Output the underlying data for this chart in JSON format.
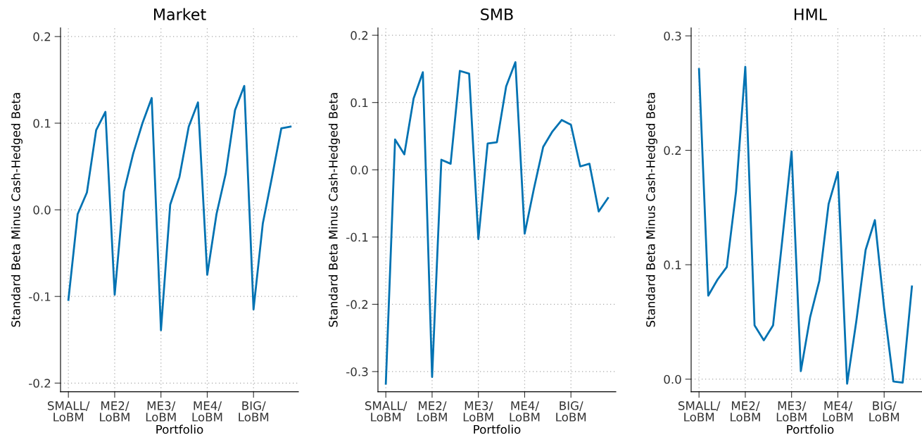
{
  "chart_data": [
    {
      "type": "line",
      "title": "Market",
      "xlabel": "Portfolio",
      "ylabel": "Standard Beta Minus Cash-Hedged Beta",
      "categories": [
        "SMALL/\nLoBM",
        null,
        null,
        null,
        null,
        "ME2/\nLoBM",
        null,
        null,
        null,
        null,
        "ME3/\nLoBM",
        null,
        null,
        null,
        null,
        "ME4/\nLoBM",
        null,
        null,
        null,
        null,
        "BIG/\nLoBM",
        null,
        null,
        null,
        null
      ],
      "series": [
        {
          "color": "#0072b2",
          "values": [
            -0.104,
            -0.005,
            0.02,
            0.092,
            0.113,
            -0.098,
            0.021,
            0.065,
            0.1,
            0.129,
            -0.139,
            0.006,
            0.038,
            0.096,
            0.124,
            -0.075,
            -0.005,
            0.042,
            0.115,
            0.143,
            -0.115,
            -0.016,
            0.038,
            0.094,
            0.096
          ]
        }
      ],
      "ylim": [
        -0.21,
        0.21
      ],
      "yticks": [
        {
          "value": -0.2,
          "label": "-0.2"
        },
        {
          "value": -0.1,
          "label": "-0.1"
        },
        {
          "value": 0,
          "label": "0.0"
        },
        {
          "value": 0.1,
          "label": "0.1"
        },
        {
          "value": 0.2,
          "label": "0.2"
        }
      ],
      "grid": true
    },
    {
      "type": "line",
      "title": "SMB",
      "xlabel": "Portfolio",
      "ylabel": "Standard Beta Minus Cash-Hedged Beta",
      "categories": [
        "SMALL/\nLoBM",
        null,
        null,
        null,
        null,
        "ME2/\nLoBM",
        null,
        null,
        null,
        null,
        "ME3/\nLoBM",
        null,
        null,
        null,
        null,
        "ME4/\nLoBM",
        null,
        null,
        null,
        null,
        "BIG/\nLoBM",
        null,
        null,
        null,
        null
      ],
      "series": [
        {
          "color": "#0072b2",
          "values": [
            -0.318,
            0.045,
            0.023,
            0.106,
            0.145,
            -0.308,
            0.015,
            0.009,
            0.147,
            0.143,
            -0.103,
            0.039,
            0.041,
            0.124,
            0.16,
            -0.095,
            -0.028,
            0.034,
            0.057,
            0.074,
            0.067,
            0.005,
            0.009,
            -0.062,
            -0.042
          ]
        }
      ],
      "ylim": [
        -0.33,
        0.211
      ],
      "yticks": [
        {
          "value": -0.3,
          "label": "-0.3"
        },
        {
          "value": -0.2,
          "label": "-0.2"
        },
        {
          "value": -0.1,
          "label": "-0.1"
        },
        {
          "value": 0,
          "label": "0.0"
        },
        {
          "value": 0.1,
          "label": "0.1"
        },
        {
          "value": 0.2,
          "label": "0.2"
        }
      ],
      "grid": true
    },
    {
      "type": "line",
      "title": "HML",
      "xlabel": "Portfolio",
      "ylabel": "Standard Beta Minus Cash-Hedged Beta",
      "categories": [
        "SMALL/\nLoBM",
        null,
        null,
        null,
        null,
        "ME2/\nLoBM",
        null,
        null,
        null,
        null,
        "ME3/\nLoBM",
        null,
        null,
        null,
        null,
        "ME4/\nLoBM",
        null,
        null,
        null,
        null,
        "BIG/\nLoBM",
        null,
        null,
        null,
        null
      ],
      "series": [
        {
          "color": "#0072b2",
          "values": [
            0.271,
            0.073,
            0.087,
            0.098,
            0.164,
            0.273,
            0.047,
            0.034,
            0.047,
            0.122,
            0.199,
            0.007,
            0.054,
            0.086,
            0.153,
            0.181,
            -0.004,
            0.051,
            0.113,
            0.139,
            0.062,
            -0.002,
            -0.003,
            0.081,
            null
          ]
        }
      ],
      "ylim": [
        -0.011,
        0.307
      ],
      "yticks": [
        {
          "value": 0,
          "label": "0.0"
        },
        {
          "value": 0.1,
          "label": "0.1"
        },
        {
          "value": 0.2,
          "label": "0.2"
        },
        {
          "value": 0.3,
          "label": "0.3"
        }
      ],
      "grid": true
    }
  ]
}
